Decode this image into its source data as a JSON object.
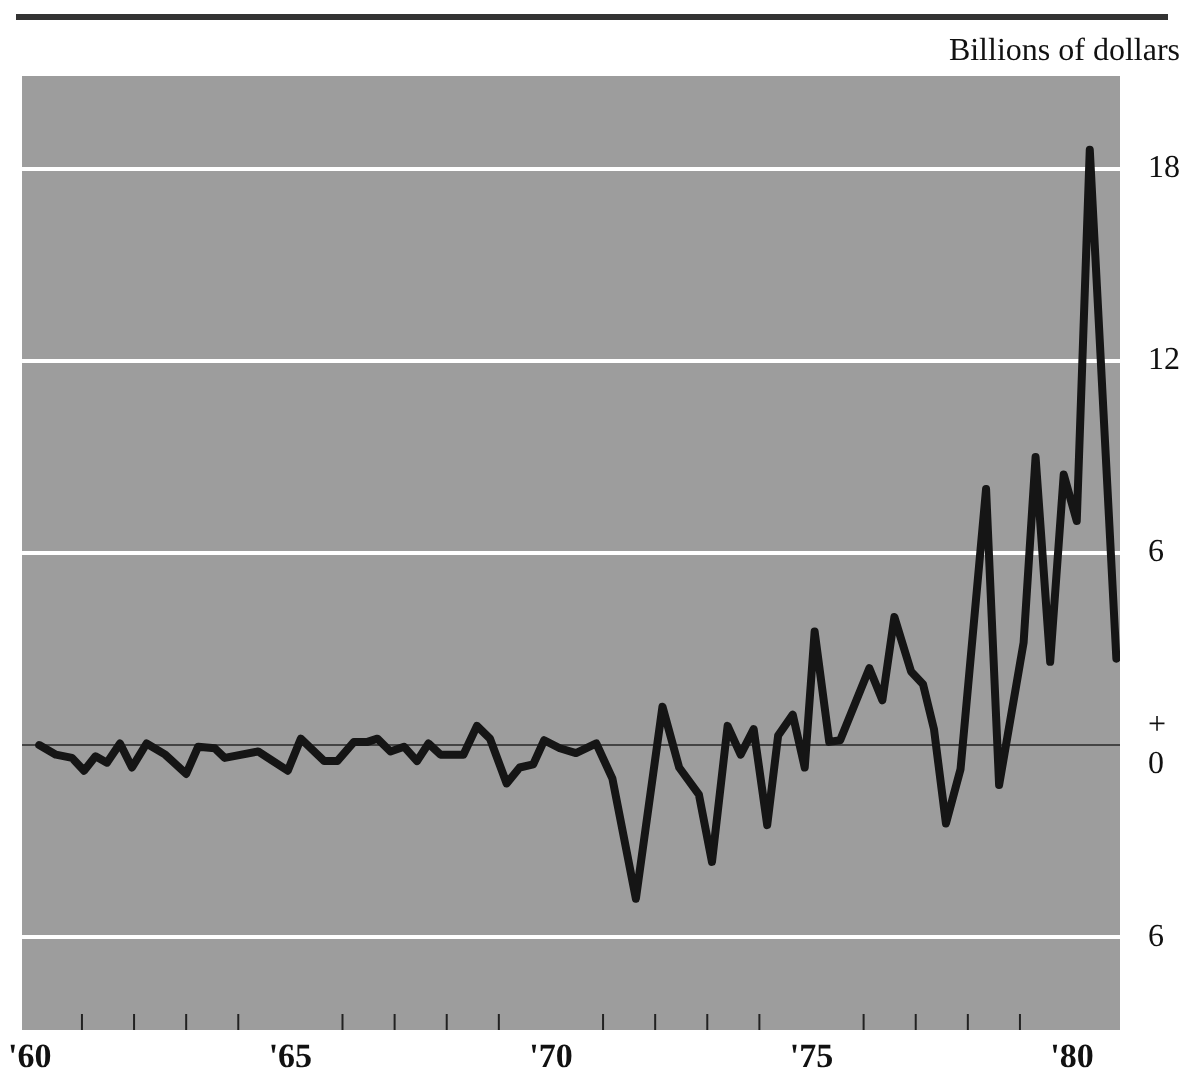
{
  "chart_data": {
    "type": "line",
    "ylabel": "Billions of dollars",
    "x": [
      60.18,
      60.5,
      60.81,
      61.04,
      61.26,
      61.48,
      61.73,
      61.96,
      62.24,
      62.6,
      63.0,
      63.23,
      63.55,
      63.74,
      64.38,
      64.95,
      65.2,
      65.65,
      65.9,
      66.22,
      66.48,
      66.67,
      66.92,
      67.18,
      67.43,
      67.65,
      67.88,
      68.32,
      68.58,
      68.83,
      69.15,
      69.4,
      69.66,
      69.87,
      70.17,
      70.48,
      70.87,
      71.18,
      71.63,
      72.14,
      72.46,
      72.84,
      73.09,
      73.39,
      73.64,
      73.89,
      74.15,
      74.36,
      74.64,
      74.87,
      75.06,
      75.34,
      75.55,
      76.11,
      76.36,
      76.59,
      76.91,
      77.14,
      77.35,
      77.58,
      77.86,
      78.35,
      78.6,
      79.07,
      79.3,
      79.58,
      79.84,
      80.09,
      80.34,
      80.85
    ],
    "series": [
      {
        "color": "#151515",
        "values": [
          0,
          -0.3,
          -0.4,
          -0.8,
          -0.35,
          -0.55,
          0.05,
          -0.7,
          0.05,
          -0.3,
          -0.9,
          -0.05,
          -0.1,
          -0.4,
          -0.2,
          -0.8,
          0.2,
          -0.5,
          -0.5,
          0.1,
          0.1,
          0.2,
          -0.2,
          -0.05,
          -0.5,
          0.05,
          -0.3,
          -0.3,
          0.6,
          0.2,
          -1.2,
          -0.7,
          -0.6,
          0.15,
          -0.1,
          -0.25,
          0.05,
          -1.05,
          -4.8,
          1.2,
          -0.7,
          -1.55,
          -3.65,
          0.6,
          -0.3,
          0.5,
          -2.5,
          0.3,
          0.95,
          -0.7,
          3.55,
          0.1,
          0.15,
          2.4,
          1.4,
          4.0,
          2.3,
          1.9,
          0.5,
          -2.45,
          -0.75,
          8.0,
          -1.25,
          3.2,
          9.0,
          2.6,
          8.45,
          7.0,
          18.6,
          2.7
        ]
      }
    ],
    "xlim": [
      59.85,
      80.92
    ],
    "xticks": [
      {
        "value": 60,
        "label": "'60"
      },
      {
        "value": 61,
        "label": null
      },
      {
        "value": 62,
        "label": null
      },
      {
        "value": 63,
        "label": null
      },
      {
        "value": 64,
        "label": null
      },
      {
        "value": 65,
        "label": "'65"
      },
      {
        "value": 66,
        "label": null
      },
      {
        "value": 67,
        "label": null
      },
      {
        "value": 68,
        "label": null
      },
      {
        "value": 69,
        "label": null
      },
      {
        "value": 70,
        "label": "'70"
      },
      {
        "value": 71,
        "label": null
      },
      {
        "value": 72,
        "label": null
      },
      {
        "value": 73,
        "label": null
      },
      {
        "value": 74,
        "label": null
      },
      {
        "value": 75,
        "label": "'75"
      },
      {
        "value": 76,
        "label": null
      },
      {
        "value": 77,
        "label": null
      },
      {
        "value": 78,
        "label": null
      },
      {
        "value": 79,
        "label": null
      },
      {
        "value": 80,
        "label": "'80"
      }
    ],
    "ylim": [
      -8.9,
      20.9
    ],
    "yticks": [
      {
        "value": -6,
        "label": "6"
      },
      {
        "value": 0,
        "label": "+\n0"
      },
      6,
      12,
      18
    ],
    "grid": "y",
    "marker": "none",
    "line_style": "solid"
  }
}
